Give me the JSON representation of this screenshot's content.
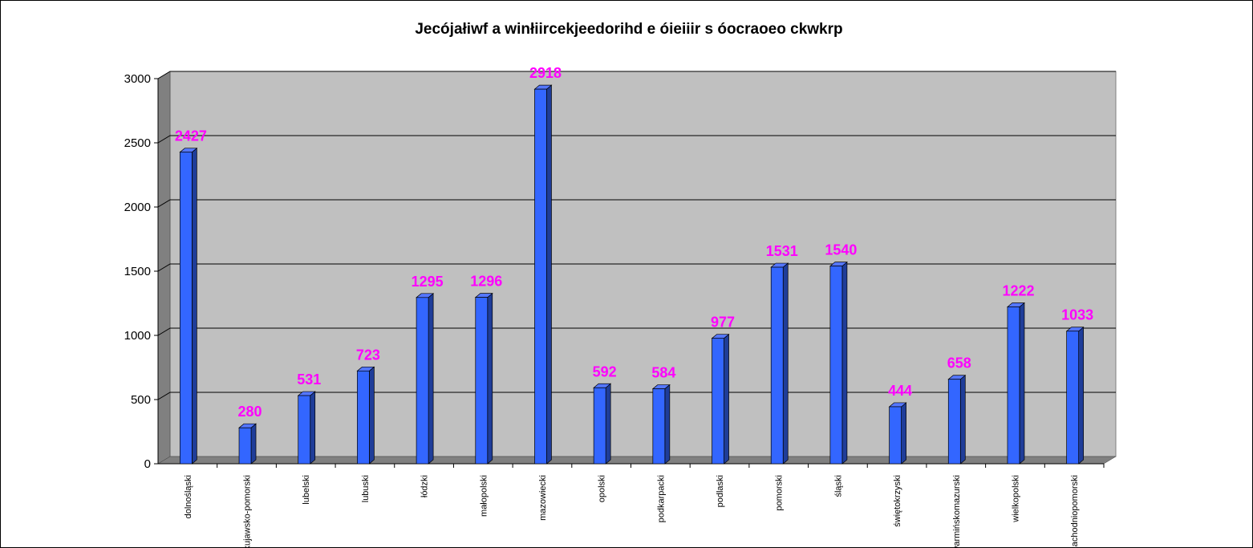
{
  "chart_data": {
    "type": "bar",
    "title": "Jecójałiwf a winłiircekjeedorihd e óieiiir s óocraoeo ckwkrp",
    "xlabel": "",
    "ylabel": "",
    "ylim": [
      0,
      3000
    ],
    "yticks": [
      "0",
      "500",
      "1000",
      "1500",
      "2000",
      "2500",
      "3000"
    ],
    "grid": true,
    "legend": "none",
    "categories": [
      "dolnośląski",
      "kujawsko-pomorski",
      "lubelski",
      "lubuski",
      "łódzki",
      "małopolski",
      "mazowiecki",
      "opolski",
      "podkarpacki",
      "podlaski",
      "pomorski",
      "śląski",
      "świętokrzyski",
      "warmińskomazurski",
      "wielkopolski",
      "zachodniopomorski"
    ],
    "values": [
      2427,
      280,
      531,
      723,
      1295,
      1296,
      2918,
      592,
      584,
      977,
      1531,
      1540,
      444,
      658,
      1222,
      1033
    ],
    "data_labels": [
      "2427",
      "280",
      "531",
      "723",
      "1295",
      "1296",
      "2918",
      "592",
      "584",
      "977",
      "1531",
      "1540",
      "444",
      "658",
      "1222",
      "1033"
    ],
    "colors": {
      "bar_front": "#3366ff",
      "bar_side": "#1f3d99",
      "bar_top": "#5577ff",
      "plot_back": "#c0c0c0",
      "plot_wall": "#808080",
      "floor": "#808080",
      "data_label": "#ff00ff"
    }
  }
}
